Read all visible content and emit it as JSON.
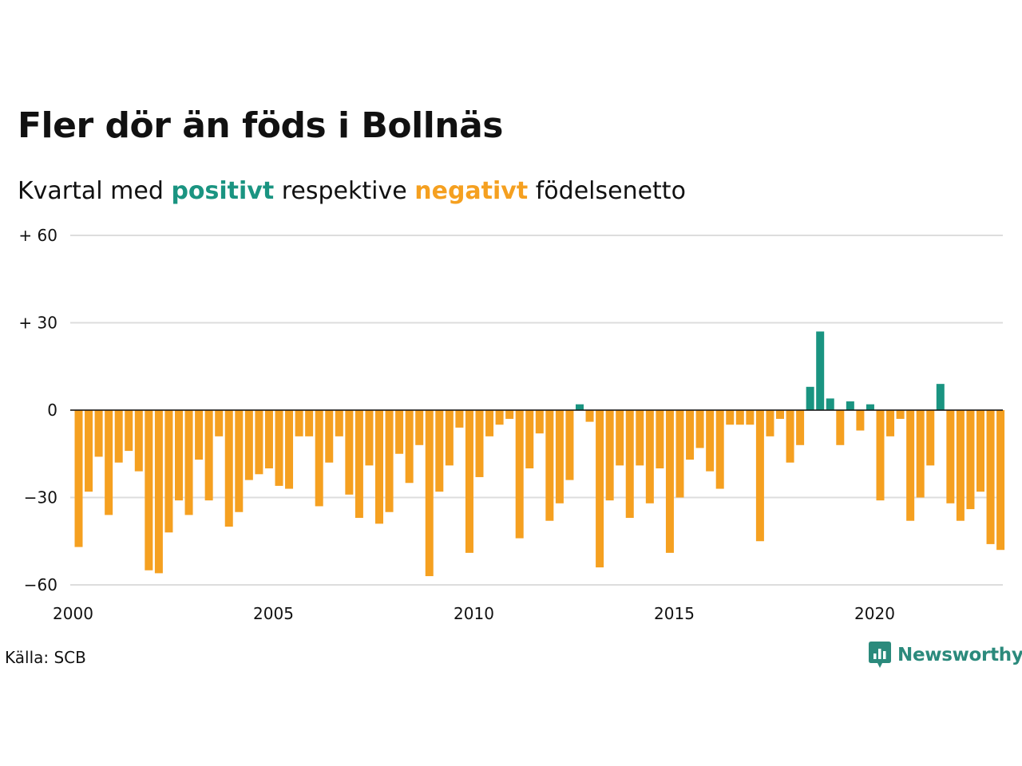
{
  "title": "Fler dör än föds i Bollnäs",
  "subtitle": {
    "before": "Kvartal med",
    "positive_word": "positivt",
    "middle": "respektive",
    "negative_word": "negativt",
    "after": "födelsenetto"
  },
  "source": "Källa: SCB",
  "brand": "Newsworthy",
  "colors": {
    "positive": "#1a9481",
    "negative": "#f5a020",
    "grid": "#dddddd",
    "text": "#111111",
    "brand": "#2b8a7c"
  },
  "chart_data": {
    "type": "bar",
    "ylim": [
      -60,
      60
    ],
    "y_ticks": [
      {
        "value": 60,
        "label": "+ 60"
      },
      {
        "value": 30,
        "label": "+ 30"
      },
      {
        "value": 0,
        "label": "0"
      },
      {
        "value": -30,
        "label": "−30"
      },
      {
        "value": -60,
        "label": "−60"
      }
    ],
    "x_ticks": [
      "2000",
      "2005",
      "2010",
      "2015",
      "2020"
    ],
    "x_start_year": 2000,
    "grid": true,
    "values": [
      -47,
      -28,
      -16,
      -36,
      -18,
      -14,
      -21,
      -55,
      -56,
      -42,
      -31,
      -36,
      -17,
      -31,
      -9,
      -40,
      -35,
      -24,
      -22,
      -20,
      -26,
      -27,
      -9,
      -9,
      -33,
      -18,
      -9,
      -29,
      -37,
      -19,
      -39,
      -35,
      -15,
      -25,
      -12,
      -57,
      -28,
      -19,
      -6,
      -49,
      -23,
      -9,
      -5,
      -3,
      -44,
      -20,
      -8,
      -38,
      -32,
      -24,
      2,
      -4,
      -54,
      -31,
      -19,
      -37,
      -19,
      -32,
      -20,
      -49,
      -30,
      -17,
      -13,
      -21,
      -27,
      -5,
      -5,
      -5,
      -45,
      -9,
      -3,
      -18,
      -12,
      8,
      27,
      4,
      -12,
      3,
      -7,
      2,
      -31,
      -9,
      -3,
      -38,
      -30,
      -19,
      9,
      -32,
      -38,
      -34,
      -28,
      -46,
      -48
    ]
  }
}
